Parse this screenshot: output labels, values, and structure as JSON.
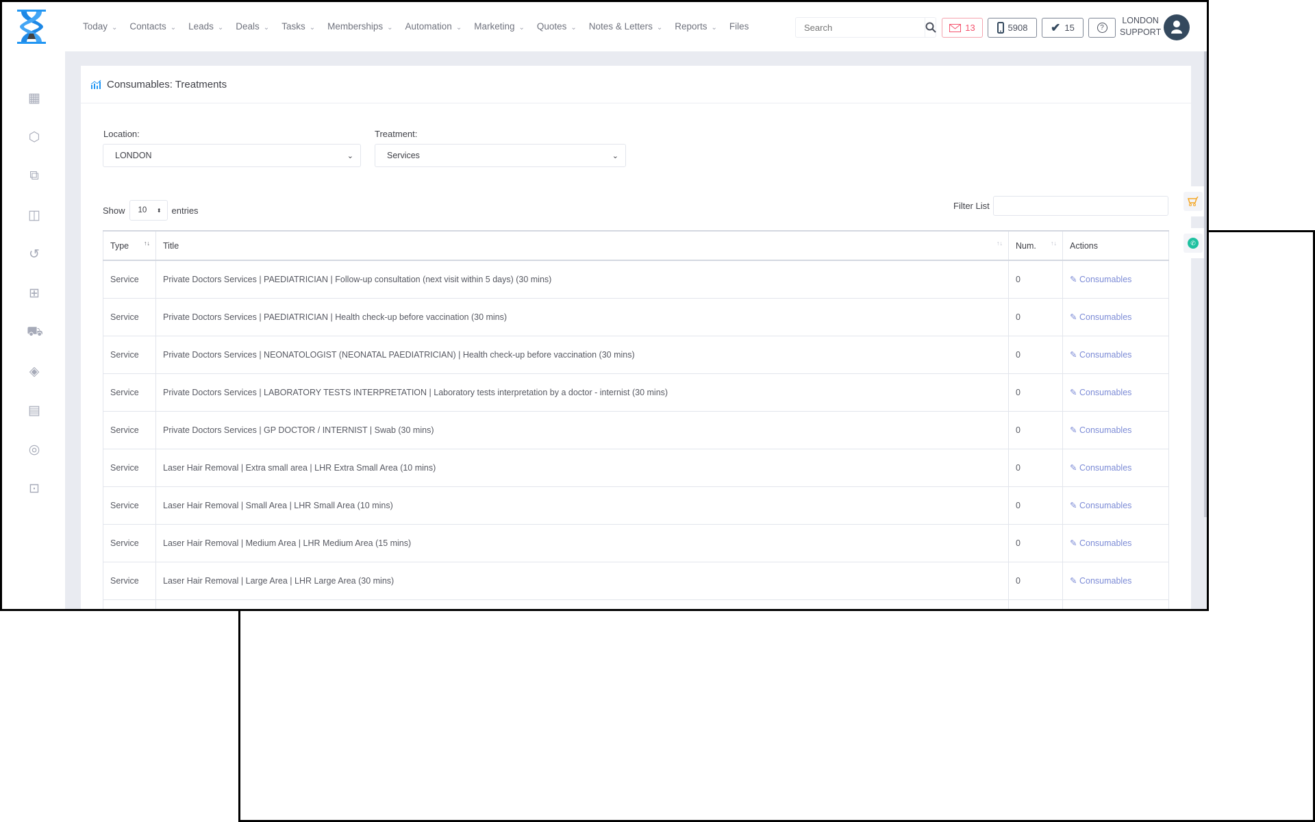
{
  "nav": {
    "items": [
      "Today",
      "Contacts",
      "Leads",
      "Deals",
      "Tasks",
      "Memberships",
      "Automation",
      "Marketing",
      "Quotes",
      "Notes & Letters",
      "Reports"
    ],
    "last": "Files"
  },
  "search": {
    "placeholder": "Search"
  },
  "badges": {
    "mail": "13",
    "phone": "5908",
    "tasks": "15"
  },
  "user": {
    "line1": "LONDON",
    "line2": "SUPPORT"
  },
  "colors": {
    "accent": "#2196f3",
    "mail": "#f4516c",
    "link": "#7c8bd6",
    "whatsapp": "#1fc1a0",
    "cart": "#f4a623"
  },
  "sidebar_icons": [
    "calendar-icon",
    "box-icon",
    "copy-icon",
    "bag-icon",
    "history-icon",
    "gift-icon",
    "cart-icon",
    "tag-icon",
    "report-icon",
    "user-cycle-icon",
    "lock-icon"
  ],
  "page": {
    "title": "Consumables: Treatments"
  },
  "filters": {
    "location_label": "Location:",
    "location_value": "LONDON",
    "treatment_label": "Treatment:",
    "treatment_value": "Services"
  },
  "table_controls": {
    "show": "Show",
    "entries_value": "10",
    "entries": "entries",
    "filter_label": "Filter List"
  },
  "table": {
    "headers": [
      "Type",
      "Title",
      "Num.",
      "Actions"
    ],
    "rows": [
      {
        "type": "Service",
        "title": "Private Doctors Services | PAEDIATRICIAN | Follow-up consultation (next visit within 5 days) (30 mins)",
        "num": "0",
        "action": "Consumables"
      },
      {
        "type": "Service",
        "title": "Private Doctors Services | PAEDIATRICIAN | Health check-up before vaccination (30 mins)",
        "num": "0",
        "action": "Consumables"
      },
      {
        "type": "Service",
        "title": "Private Doctors Services | NEONATOLOGIST (NEONATAL PAEDIATRICIAN) | Health check-up before vaccination (30 mins)",
        "num": "0",
        "action": "Consumables"
      },
      {
        "type": "Service",
        "title": "Private Doctors Services | LABORATORY TESTS INTERPRETATION | Laboratory tests interpretation by a doctor - internist (30 mins)",
        "num": "0",
        "action": "Consumables"
      },
      {
        "type": "Service",
        "title": "Private Doctors Services | GP DOCTOR / INTERNIST | Swab (30 mins)",
        "num": "0",
        "action": "Consumables"
      },
      {
        "type": "Service",
        "title": "Laser Hair Removal | Extra small area | LHR Extra Small Area (10 mins)",
        "num": "0",
        "action": "Consumables"
      },
      {
        "type": "Service",
        "title": "Laser Hair Removal | Small Area | LHR Small Area (10 mins)",
        "num": "0",
        "action": "Consumables"
      },
      {
        "type": "Service",
        "title": "Laser Hair Removal | Medium Area | LHR Medium Area (15 mins)",
        "num": "0",
        "action": "Consumables"
      },
      {
        "type": "Service",
        "title": "Laser Hair Removal | Large Area | LHR Large Area (30 mins)",
        "num": "0",
        "action": "Consumables"
      }
    ]
  }
}
